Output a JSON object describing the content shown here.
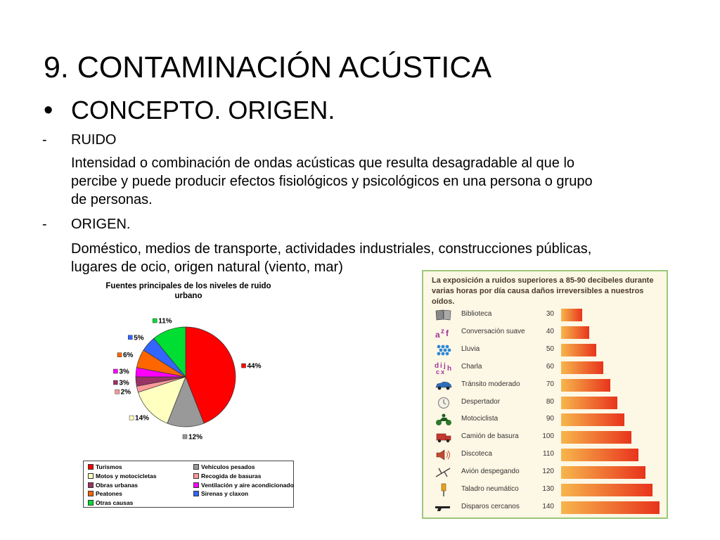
{
  "slide": {
    "title": "9. CONTAMINACIÓN ACÚSTICA",
    "bullet_symbol": "•",
    "subtitle": "CONCEPTO. ORIGEN.",
    "dash": "-",
    "item1_label": "RUIDO",
    "item1_text_line1": "Intensidad o combinación de  ondas acústicas que resulta desagradable al que lo",
    "item1_text_line2": "percibe y puede producir efectos fisiológicos y psicológicos en una persona o grupo",
    "item1_text_line3": "de personas.",
    "item2_label": "ORIGEN.",
    "item2_text_line1": "Doméstico, medios de transporte, actividades industriales, construcciones públicas,",
    "item2_text_line2": "lugares de ocio, origen natural (viento, mar)"
  },
  "chart_data": [
    {
      "type": "pie",
      "title": "Fuentes principales de los niveles de ruido urbano",
      "title_line1": "Fuentes principales de los niveles de ruido",
      "title_line2": "urbano",
      "slices": [
        {
          "name": "Turismos",
          "value": 44,
          "label": "44%",
          "color": "#ff0000"
        },
        {
          "name": "Vehículos pesados",
          "value": 12,
          "label": "12%",
          "color": "#999999"
        },
        {
          "name": "Motos y motocicletas",
          "value": 14,
          "label": "14%",
          "color": "#ffffc0"
        },
        {
          "name": "Recogida de basuras",
          "value": 2,
          "label": "2%",
          "color": "#ff9999"
        },
        {
          "name": "Obras urbanas",
          "value": 3,
          "label": "3%",
          "color": "#993366"
        },
        {
          "name": "Ventilación y aire acondicionado",
          "value": 3,
          "label": "3%",
          "color": "#ff00ff"
        },
        {
          "name": "Peatones",
          "value": 6,
          "label": "6%",
          "color": "#ff6600"
        },
        {
          "name": "Sirenas y claxon",
          "value": 5,
          "label": "5%",
          "color": "#3366ff"
        },
        {
          "name": "Otras causas",
          "value": 11,
          "label": "11%",
          "color": "#00dd33"
        }
      ],
      "legend": [
        {
          "name": "Turismos",
          "color": "#ff0000"
        },
        {
          "name": "Vehículos pesados",
          "color": "#999999"
        },
        {
          "name": "Motos y motocicletas",
          "color": "#ffffc0"
        },
        {
          "name": "Recogida de basuras",
          "color": "#ff9999"
        },
        {
          "name": "Obras urbanas",
          "color": "#993366"
        },
        {
          "name": "Ventilación y aire acondicionado",
          "color": "#ff00ff"
        },
        {
          "name": "Peatones",
          "color": "#ff6600"
        },
        {
          "name": "Sirenas y claxon",
          "color": "#3366ff"
        },
        {
          "name": "Otras causas",
          "color": "#00dd33"
        }
      ]
    },
    {
      "type": "bar",
      "orientation": "horizontal",
      "title": "La exposición a ruidos superiores a 85-90 decibeles durante varias horas por día causa daños irreversibles a nuestros oídos.",
      "title_line1": "La exposición a ruidos superiores a 85-90 decibeles durante",
      "title_line2": "varias horas por día causa daños irreversibles a nuestros oídos.",
      "xlim": [
        0,
        140
      ],
      "categories": [
        "Biblioteca",
        "Conversación suave",
        "Lluvia",
        "Charla",
        "Tránsito moderado",
        "Despertador",
        "Motociclista",
        "Camión de basura",
        "Discoteca",
        "Avión despegando",
        "Taladro neumático",
        "Disparos cercanos"
      ],
      "values": [
        30,
        40,
        50,
        60,
        70,
        80,
        90,
        100,
        110,
        120,
        130,
        140
      ],
      "icons": [
        "book-icon",
        "letters-icon",
        "rain-icon",
        "chat-icon",
        "car-icon",
        "alarm-clock-icon",
        "motorcycle-icon",
        "garbage-truck-icon",
        "speaker-icon",
        "airplane-icon",
        "drill-icon",
        "gun-icon"
      ],
      "bar_color_start": "#f7b64c",
      "bar_color_end": "#e8341c"
    }
  ]
}
